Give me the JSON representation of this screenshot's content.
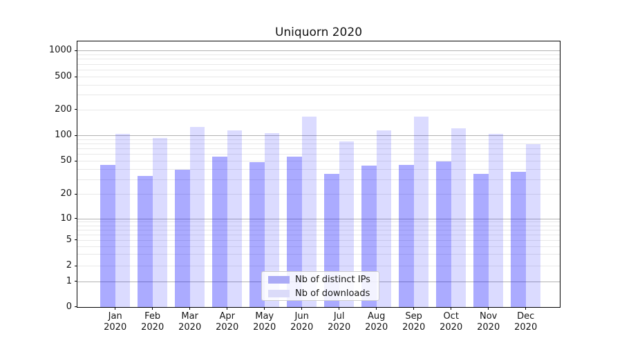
{
  "title": "Uniquorn 2020",
  "chart_data": {
    "type": "bar",
    "title": "Uniquorn 2020",
    "categories": [
      "Jan 2020",
      "Feb 2020",
      "Mar 2020",
      "Apr 2020",
      "May 2020",
      "Jun 2020",
      "Jul 2020",
      "Aug 2020",
      "Sep 2020",
      "Oct 2020",
      "Nov 2020",
      "Dec 2020"
    ],
    "series": [
      {
        "name": "Nb of distinct IPs",
        "values": [
          45,
          33,
          39,
          56,
          48,
          56,
          35,
          44,
          45,
          49,
          35,
          37
        ],
        "fill": "rgba(0,0,255,0.33)",
        "swatch_color": "#ababf6"
      },
      {
        "name": "Nb of downloads",
        "values": [
          104,
          92,
          125,
          113,
          106,
          166,
          84,
          114,
          166,
          121,
          103,
          79
        ],
        "fill": "rgba(0,0,255,0.14)",
        "swatch_color": "#dbdbf9"
      }
    ],
    "xlabel": "",
    "ylabel": "",
    "yscale": "symlog",
    "yticks": [
      0,
      1,
      2,
      5,
      10,
      20,
      50,
      100,
      200,
      500,
      1000
    ],
    "ylim": [
      0,
      1200
    ],
    "grid": true,
    "legend_position": "lower center",
    "grid_major_color": "#b2b2b2",
    "grid_minor_color": "#e8e8e8",
    "text_color": "#141414"
  }
}
